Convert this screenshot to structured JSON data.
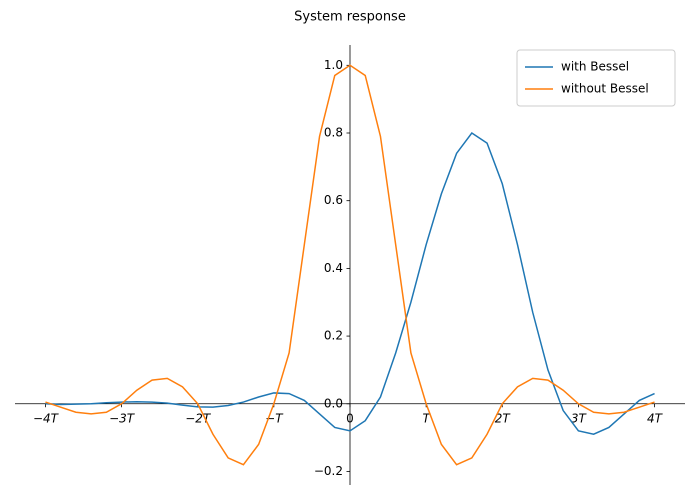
{
  "chart_data": {
    "type": "line",
    "title": "System response",
    "x": [
      -4,
      -3.8,
      -3.6,
      -3.4,
      -3.2,
      -3,
      -2.8,
      -2.6,
      -2.4,
      -2.2,
      -2,
      -1.8,
      -1.6,
      -1.4,
      -1.2,
      -1,
      -0.8,
      -0.6,
      -0.4,
      -0.2,
      0,
      0.2,
      0.4,
      0.6,
      0.8,
      1,
      1.2,
      1.4,
      1.6,
      1.8,
      2,
      2.2,
      2.4,
      2.6,
      2.8,
      3,
      3.2,
      3.4,
      3.6,
      3.8,
      4
    ],
    "series": [
      {
        "name": "with Bessel",
        "color": "#1f77b4",
        "values": [
          0,
          -0.002,
          -0.001,
          0,
          0.003,
          0.005,
          0.006,
          0.005,
          0.002,
          -0.004,
          -0.009,
          -0.01,
          -0.005,
          0.005,
          0.02,
          0.032,
          0.03,
          0.01,
          -0.03,
          -0.07,
          -0.08,
          -0.05,
          0.02,
          0.15,
          0.3,
          0.47,
          0.62,
          0.74,
          0.8,
          0.77,
          0.65,
          0.47,
          0.27,
          0.1,
          -0.02,
          -0.08,
          -0.09,
          -0.07,
          -0.03,
          0.01,
          0.03
        ]
      },
      {
        "name": "without Bessel",
        "color": "#ff7f0e",
        "values": [
          0.005,
          -0.01,
          -0.025,
          -0.03,
          -0.025,
          0,
          0.04,
          0.07,
          0.075,
          0.05,
          0,
          -0.09,
          -0.16,
          -0.18,
          -0.12,
          0,
          0.15,
          0.47,
          0.79,
          0.97,
          1.0,
          0.97,
          0.79,
          0.47,
          0.15,
          0,
          -0.12,
          -0.18,
          -0.16,
          -0.09,
          0,
          0.05,
          0.075,
          0.07,
          0.04,
          0,
          -0.025,
          -0.03,
          -0.025,
          -0.01,
          0.005
        ]
      }
    ],
    "xlim": [
      -4.4,
      4.4
    ],
    "ylim": [
      -0.24,
      1.06
    ],
    "xticks": [
      {
        "value": -4,
        "label": "−4T"
      },
      {
        "value": -3,
        "label": "−3T"
      },
      {
        "value": -2,
        "label": "−2T"
      },
      {
        "value": -1,
        "label": "−T"
      },
      0,
      {
        "value": 1,
        "label": "T"
      },
      {
        "value": 2,
        "label": "2T"
      },
      {
        "value": 3,
        "label": "3T"
      },
      {
        "value": 4,
        "label": "4T"
      }
    ],
    "yticks": [
      {
        "value": -0.2,
        "label": "−0.2"
      },
      {
        "value": 0,
        "label": "0.0"
      },
      {
        "value": 0.2,
        "label": "0.2"
      },
      {
        "value": 0.4,
        "label": "0.4"
      },
      {
        "value": 0.6,
        "label": "0.6"
      },
      {
        "value": 0.8,
        "label": "0.8"
      },
      {
        "value": 1.0,
        "label": "1.0"
      }
    ],
    "legend": "upper right"
  }
}
